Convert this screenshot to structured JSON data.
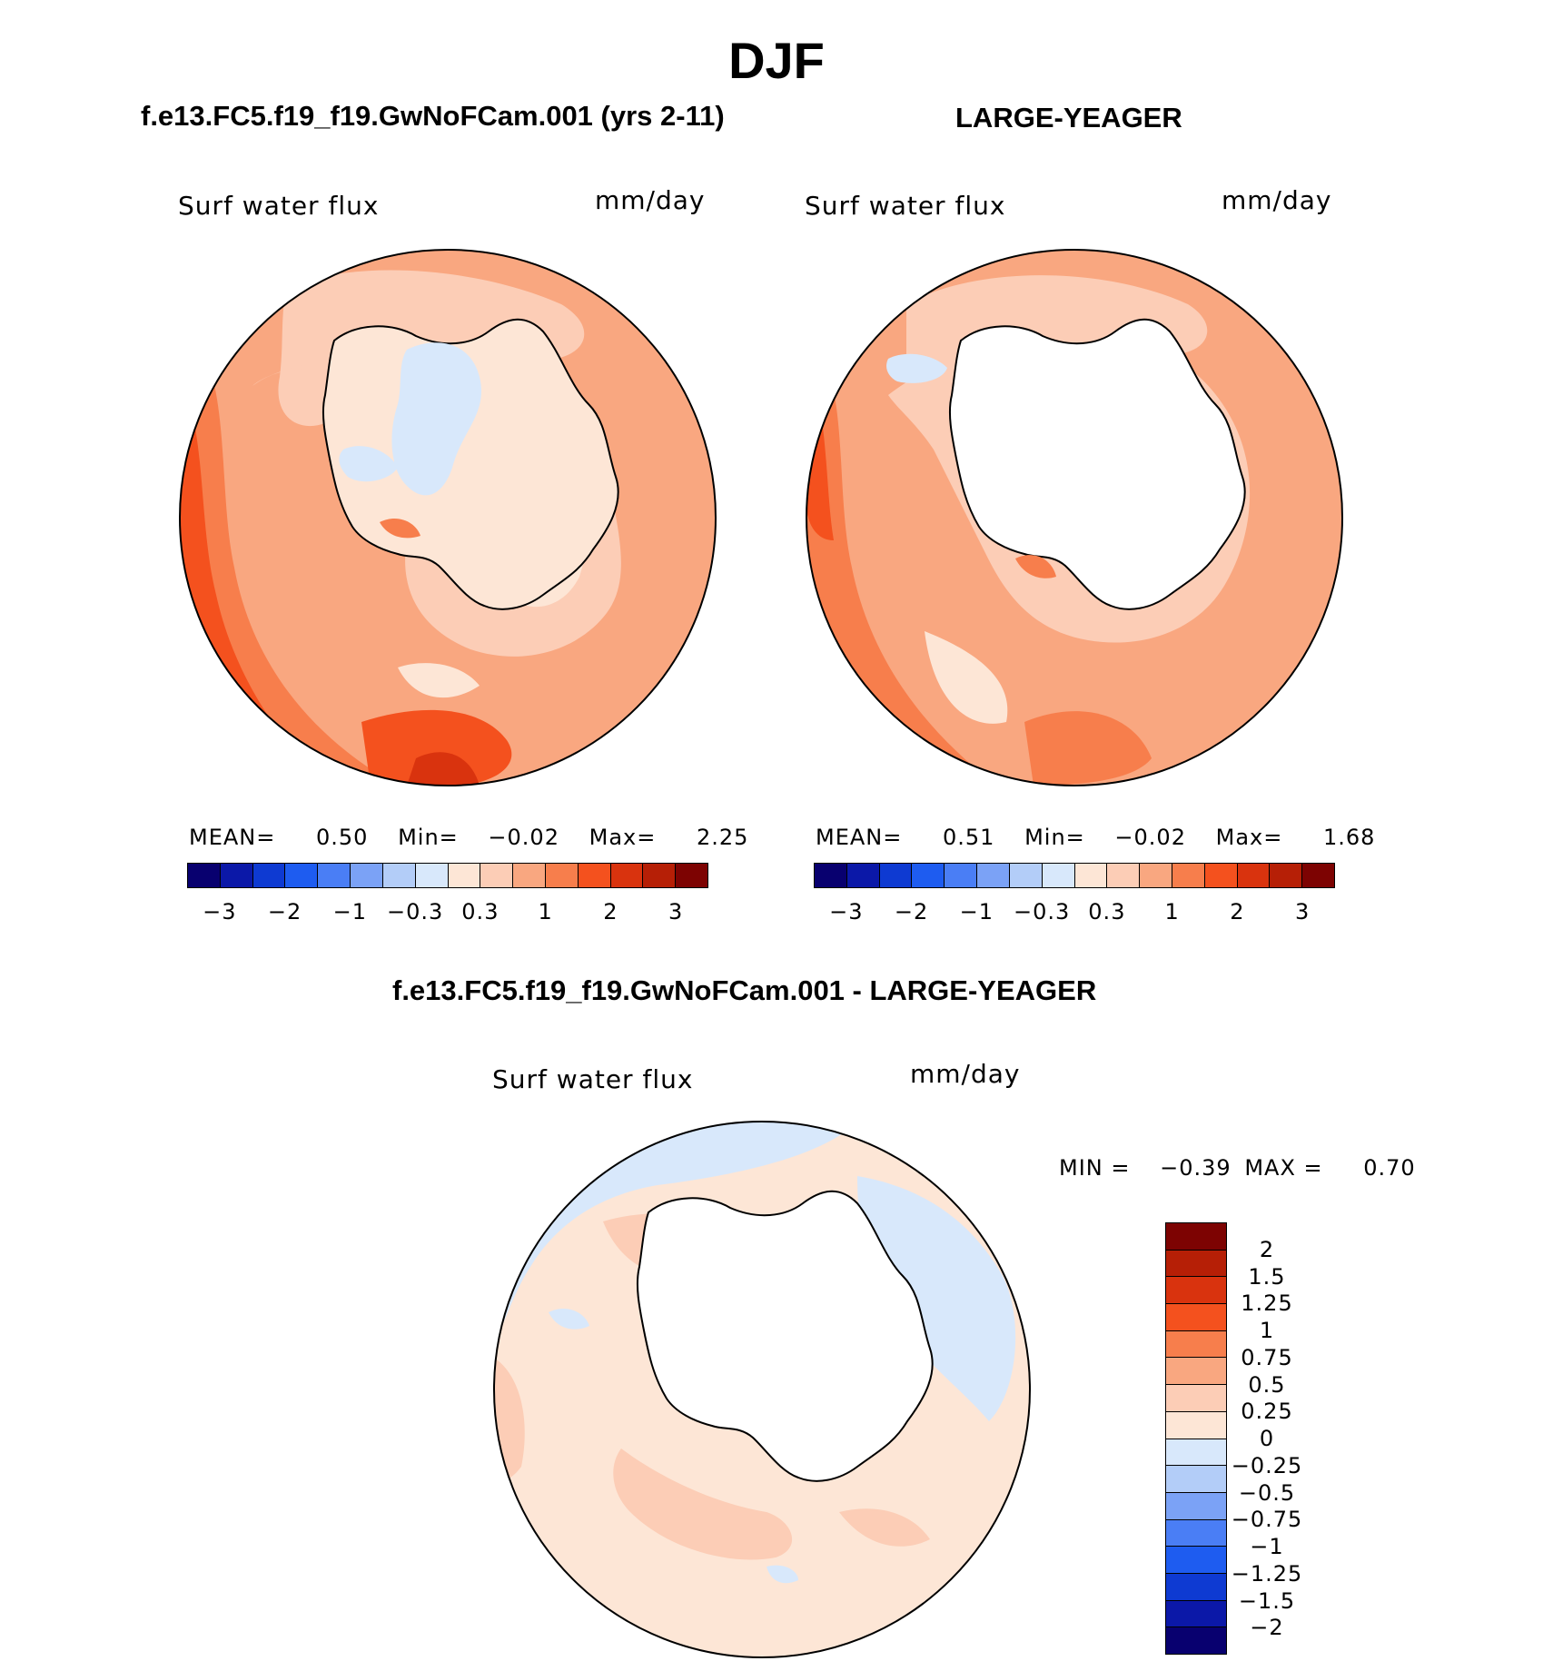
{
  "title": "DJF",
  "panels": {
    "left": {
      "title": "f.e13.FC5.f19_f19.GwNoFCam.001 (yrs 2-11)",
      "variable": "Surf water flux",
      "units": "mm/day",
      "stats": {
        "mean_label": "MEAN=",
        "mean": "0.50",
        "min_label": "Min=",
        "min": "−0.02",
        "max_label": "Max=",
        "max": "2.25"
      }
    },
    "right": {
      "title": "LARGE-YEAGER",
      "variable": "Surf water flux",
      "units": "mm/day",
      "stats": {
        "mean_label": "MEAN=",
        "mean": "0.51",
        "min_label": "Min=",
        "min": "−0.02",
        "max_label": "Max=",
        "max": "1.68"
      }
    },
    "diff": {
      "title": "f.e13.FC5.f19_f19.GwNoFCam.001 - LARGE-YEAGER",
      "variable": "Surf water flux",
      "units": "mm/day",
      "stats": {
        "min_label": "MIN =",
        "min": "−0.39",
        "max_label": "MAX =",
        "max": "0.70"
      }
    }
  },
  "colorbar_top": {
    "colors": [
      "#08006f",
      "#0b18a8",
      "#0e3ad2",
      "#1e5cf0",
      "#4a7ef5",
      "#7ba2f6",
      "#b3cdf8",
      "#d8e8fb",
      "#fde6d6",
      "#fccdb6",
      "#f9a780",
      "#f77e4c",
      "#f4511e",
      "#d9330e",
      "#b61f06",
      "#7d0302"
    ],
    "ticks": [
      "−3",
      "−2",
      "−1",
      "−0.3",
      "0.3",
      "1",
      "2",
      "3"
    ]
  },
  "colorbar_diff": {
    "colors_top_to_bottom": [
      "#7d0302",
      "#b61f06",
      "#d9330e",
      "#f4511e",
      "#f77e4c",
      "#f9a780",
      "#fccdb6",
      "#fde6d6",
      "#d8e8fb",
      "#b3cdf8",
      "#7ba2f6",
      "#4a7ef5",
      "#1e5cf0",
      "#0e3ad2",
      "#0b18a8",
      "#08006f"
    ],
    "ticks": [
      "2",
      "1.5",
      "1.25",
      "1",
      "0.75",
      "0.5",
      "0.25",
      "0",
      "−0.25",
      "−0.5",
      "−0.75",
      "−1",
      "−1.25",
      "−1.5",
      "−2"
    ]
  }
}
